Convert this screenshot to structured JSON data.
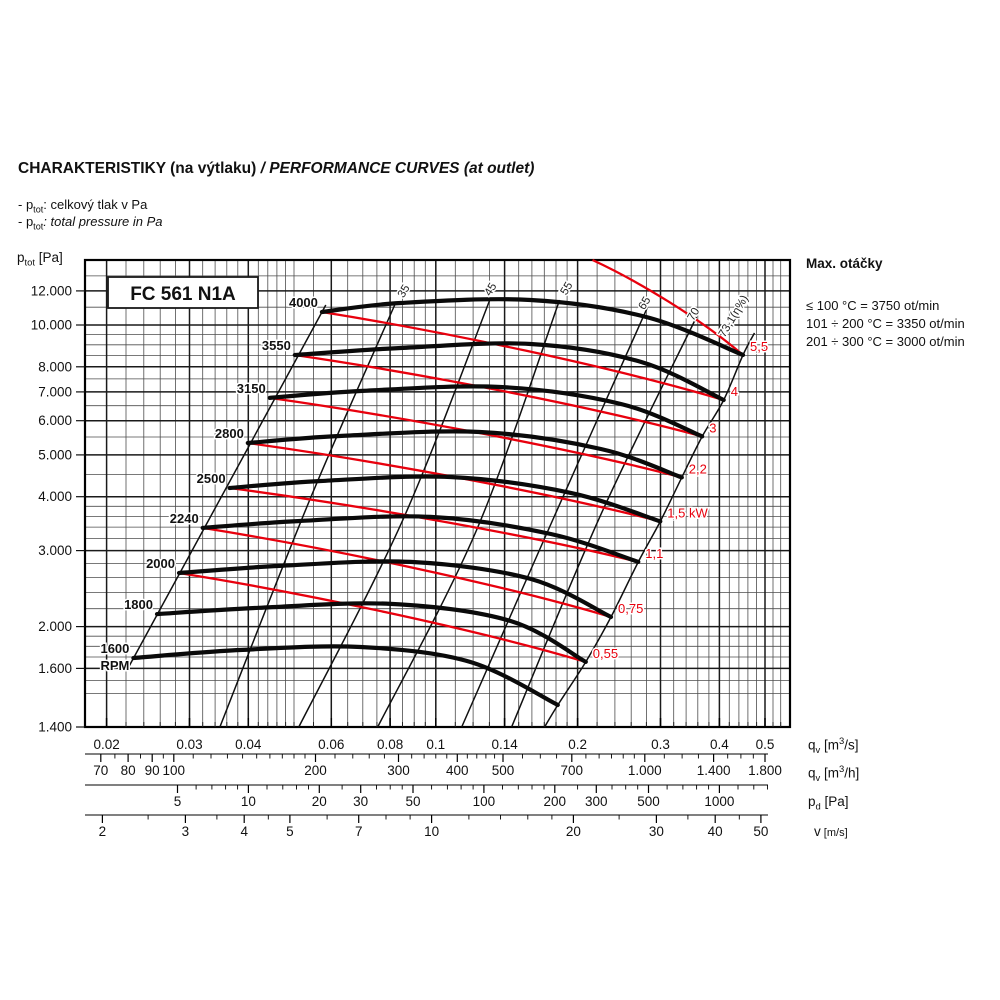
{
  "page": {
    "heading": {
      "cz": "CHARAKTERISTIKY (na výtlaku)",
      "en": " / PERFORMANCE CURVES (at outlet)"
    },
    "bullets": [
      {
        "pre": "- p",
        "sub": "tot",
        "rest": ": celkový tlak v Pa"
      },
      {
        "pre": "- p",
        "sub": "tot",
        "rest": ": total pressure in Pa"
      }
    ]
  },
  "info_panel": {
    "title": "Max. otáčky",
    "lines": [
      "≤ 100 °C = 3750 ot/min",
      "101 ÷ 200 °C = 3350 ot/min",
      "201 ÷ 300 °C = 3000 ot/min"
    ]
  },
  "units": {
    "ptot": {
      "sym": "p",
      "sub": "tot",
      "post": " [Pa]"
    },
    "flow_s": {
      "sym": "q",
      "sub": "v",
      "pre": " [m",
      "sup": "3",
      "post": "/s]"
    },
    "flow_h": {
      "sym": "q",
      "sub": "v",
      "pre": " [m",
      "sup": "3",
      "post": "/h]"
    },
    "pd": {
      "sym": "p",
      "sub": "d",
      "post": " [Pa]"
    },
    "vel": {
      "sym": "v",
      "post": " [m/s]"
    }
  },
  "chart_data": {
    "type": "line",
    "title_box": "FC 561 N1A",
    "x_axis": {
      "unit": "qv [m3/s]",
      "scale": "log",
      "min": 0.018,
      "max": 0.565,
      "major_ticks": [
        {
          "v": 0.02,
          "label": "0.02"
        },
        {
          "v": 0.03,
          "label": "0.03"
        },
        {
          "v": 0.04,
          "label": "0.04"
        },
        {
          "v": 0.06,
          "label": "0.06"
        },
        {
          "v": 0.08,
          "label": "0.08"
        },
        {
          "v": 0.1,
          "label": "0.1"
        },
        {
          "v": 0.14,
          "label": "0.14"
        },
        {
          "v": 0.2,
          "label": "0.2"
        },
        {
          "v": 0.3,
          "label": "0.3"
        },
        {
          "v": 0.4,
          "label": "0.4"
        },
        {
          "v": 0.5,
          "label": "0.5"
        }
      ],
      "minor_ticks": [
        0.022,
        0.024,
        0.026,
        0.028,
        0.032,
        0.034,
        0.036,
        0.038,
        0.042,
        0.044,
        0.046,
        0.048,
        0.05,
        0.055,
        0.065,
        0.07,
        0.075,
        0.085,
        0.09,
        0.095,
        0.11,
        0.12,
        0.13,
        0.15,
        0.16,
        0.17,
        0.18,
        0.19,
        0.22,
        0.24,
        0.26,
        0.28,
        0.32,
        0.34,
        0.36,
        0.38,
        0.42,
        0.44,
        0.46,
        0.48,
        0.52,
        0.54
      ]
    },
    "y_axis": {
      "unit": "ptot [Pa]",
      "scale": "log",
      "min": 1170,
      "max": 14150,
      "major_ticks": [
        {
          "v": 12000,
          "label": "12.000"
        },
        {
          "v": 10000,
          "label": "10.000"
        },
        {
          "v": 8000,
          "label": "8.000"
        },
        {
          "v": 7000,
          "label": "7.000"
        },
        {
          "v": 6000,
          "label": "6.000"
        },
        {
          "v": 5000,
          "label": "5.000"
        },
        {
          "v": 4000,
          "label": "4.000"
        },
        {
          "v": 3000,
          "label": "3.000"
        },
        {
          "v": 2000,
          "label": "2.000"
        },
        {
          "v": 1600,
          "label": "1.600"
        },
        {
          "v": 1400,
          "label": "1.400",
          "at_bottom_edge": true
        }
      ],
      "minor_ticks": [
        1400,
        1500,
        1700,
        1800,
        1900,
        2200,
        2400,
        2600,
        2800,
        3200,
        3400,
        3600,
        3800,
        4500,
        5500,
        6500,
        7500,
        8500,
        9000,
        9500,
        11000,
        13000
      ]
    },
    "rpm_unit_label": "RPM",
    "fan_curves": [
      {
        "rpm": 1600,
        "label": "1600",
        "points": [
          [
            0.0228,
            1691
          ],
          [
            0.0384,
            1765
          ],
          [
            0.0692,
            1793
          ],
          [
            0.1182,
            1656
          ],
          [
            0.1816,
            1316
          ]
        ]
      },
      {
        "rpm": 1800,
        "label": "1800",
        "points": [
          [
            0.0256,
            2138
          ],
          [
            0.0421,
            2210
          ],
          [
            0.0802,
            2257
          ],
          [
            0.1439,
            2061
          ],
          [
            0.2082,
            1656
          ]
        ]
      },
      {
        "rpm": 2000,
        "label": "2000",
        "points": [
          [
            0.0285,
            2662
          ],
          [
            0.0466,
            2764
          ],
          [
            0.0884,
            2824
          ],
          [
            0.1589,
            2579
          ],
          [
            0.2355,
            2105
          ]
        ]
      },
      {
        "rpm": 2240,
        "label": "2240",
        "points": [
          [
            0.032,
            3386
          ],
          [
            0.0515,
            3514
          ],
          [
            0.0974,
            3591
          ],
          [
            0.1755,
            3278
          ],
          [
            0.2691,
            2824
          ]
        ]
      },
      {
        "rpm": 2500,
        "label": "2500",
        "points": [
          [
            0.0365,
            4191
          ],
          [
            0.057,
            4350
          ],
          [
            0.1073,
            4444
          ],
          [
            0.1935,
            4081
          ],
          [
            0.2997,
            3506
          ]
        ]
      },
      {
        "rpm": 2800,
        "label": "2800",
        "points": [
          [
            0.0399,
            5328
          ],
          [
            0.0625,
            5530
          ],
          [
            0.1241,
            5650
          ],
          [
            0.2242,
            5161
          ],
          [
            0.3329,
            4434
          ]
        ]
      },
      {
        "rpm": 3150,
        "label": "3150",
        "points": [
          [
            0.0444,
            6776
          ],
          [
            0.0692,
            7032
          ],
          [
            0.137,
            7185
          ],
          [
            0.2473,
            6562
          ],
          [
            0.3679,
            5520
          ]
        ]
      },
      {
        "rpm": 3550,
        "label": "3550",
        "points": [
          [
            0.0502,
            8524
          ],
          [
            0.0842,
            8847
          ],
          [
            0.1589,
            9039
          ],
          [
            0.2731,
            8210
          ],
          [
            0.4086,
            6702
          ]
        ]
      },
      {
        "rpm": 4000,
        "label": "4000",
        "points": [
          [
            0.0573,
            10723
          ],
          [
            0.0842,
            11250
          ],
          [
            0.1589,
            11432
          ],
          [
            0.2798,
            10440
          ],
          [
            0.449,
            8524
          ]
        ]
      }
    ],
    "power_curves": [
      {
        "label": "0,55",
        "points": [
          [
            0.0285,
            2662
          ],
          [
            0.2082,
            1656
          ]
        ]
      },
      {
        "label": "0,75",
        "points": [
          [
            0.032,
            3386
          ],
          [
            0.2355,
            2105
          ]
        ]
      },
      {
        "label": "1,1",
        "points": [
          [
            0.0365,
            4191
          ],
          [
            0.2691,
            2824
          ]
        ]
      },
      {
        "label": "1,5 kW",
        "points": [
          [
            0.0399,
            5328
          ],
          [
            0.2997,
            3506
          ]
        ]
      },
      {
        "label": "2,2",
        "points": [
          [
            0.0444,
            6776
          ],
          [
            0.3329,
            4434
          ]
        ]
      },
      {
        "label": "3",
        "points": [
          [
            0.0502,
            8524
          ],
          [
            0.3679,
            5520
          ]
        ]
      },
      {
        "label": "4",
        "points": [
          [
            0.0573,
            10723
          ],
          [
            0.4086,
            6702
          ]
        ]
      },
      {
        "label": "5,5",
        "points": [
          [
            0.2152,
            14150
          ],
          [
            0.449,
            8524
          ]
        ]
      }
    ],
    "efficiency_lines": [
      {
        "label": "35",
        "points": [
          [
            0.0348,
            1170
          ],
          [
            0.054,
            3930
          ],
          [
            0.0818,
            11130
          ]
        ],
        "label_at": [
          0.0868,
          11866
        ]
      },
      {
        "label": "45",
        "points": [
          [
            0.0512,
            1170
          ],
          [
            0.0851,
            3533
          ],
          [
            0.1302,
            11432
          ]
        ],
        "label_at": [
          0.1327,
          11979
        ]
      },
      {
        "label": "55",
        "points": [
          [
            0.0753,
            1170
          ],
          [
            0.1221,
            3349
          ],
          [
            0.1832,
            11432
          ]
        ],
        "label_at": [
          0.1924,
          12036
        ]
      },
      {
        "label": "65",
        "points": [
          [
            0.1135,
            1170
          ],
          [
            0.1771,
            3533
          ],
          [
            0.2816,
            11010
          ]
        ],
        "label_at": [
          0.2816,
          11130
        ]
      },
      {
        "label": "70",
        "points": [
          [
            0.1449,
            1170
          ],
          [
            0.2239,
            3629
          ],
          [
            0.3578,
            10440
          ]
        ],
        "label_at": [
          0.3578,
          10496
        ]
      },
      {
        "label": "73,1(η%)",
        "points": [
          [
            0.1702,
            1170
          ],
          [
            0.1816,
            1316
          ],
          [
            0.2082,
            1656
          ],
          [
            0.2355,
            2105
          ],
          [
            0.2691,
            2824
          ],
          [
            0.2997,
            3506
          ],
          [
            0.3329,
            4434
          ],
          [
            0.3679,
            5520
          ],
          [
            0.4086,
            6702
          ],
          [
            0.449,
            8524
          ],
          [
            0.4749,
            9585
          ]
        ],
        "label_at": [
          0.4349,
          10383
        ]
      }
    ],
    "surge_line": [
      [
        0.0222,
        1600
      ],
      [
        0.0584,
        11130
      ]
    ],
    "secondary_axes": [
      {
        "name": "qv_m3h",
        "unit": "qv [m3/h]",
        "convert": "flow_h",
        "major_ticks": [
          {
            "v": 70,
            "label": "70"
          },
          {
            "v": 80,
            "label": "80"
          },
          {
            "v": 90,
            "label": "90"
          },
          {
            "v": 100,
            "label": "100"
          },
          {
            "v": 200,
            "label": "200"
          },
          {
            "v": 300,
            "label": "300"
          },
          {
            "v": 400,
            "label": "400"
          },
          {
            "v": 500,
            "label": "500"
          },
          {
            "v": 700,
            "label": "700"
          },
          {
            "v": 1000,
            "label": "1.000"
          },
          {
            "v": 1400,
            "label": "1.400"
          },
          {
            "v": 1800,
            "label": "1.800"
          }
        ],
        "minor_ticks": [
          75,
          85,
          95,
          110,
          120,
          130,
          140,
          150,
          160,
          170,
          180,
          190,
          220,
          240,
          260,
          280,
          320,
          340,
          360,
          380,
          420,
          440,
          460,
          480,
          550,
          600,
          650,
          750,
          800,
          850,
          900,
          950,
          1100,
          1200,
          1300,
          1500,
          1600,
          1700
        ]
      },
      {
        "name": "pd_pa",
        "unit": "pd [Pa]",
        "convert": "dyn_pressure",
        "major_ticks": [
          {
            "v": 5,
            "label": "5"
          },
          {
            "v": 10,
            "label": "10"
          },
          {
            "v": 20,
            "label": "20"
          },
          {
            "v": 30,
            "label": "30"
          },
          {
            "v": 50,
            "label": "50"
          },
          {
            "v": 100,
            "label": "100"
          },
          {
            "v": 200,
            "label": "200"
          },
          {
            "v": 300,
            "label": "300"
          },
          {
            "v": 500,
            "label": "500"
          },
          {
            "v": 1000,
            "label": "1000"
          }
        ],
        "minor_ticks": [
          6,
          7,
          8,
          9,
          12,
          14,
          16,
          18,
          25,
          35,
          40,
          45,
          60,
          70,
          80,
          90,
          120,
          140,
          160,
          180,
          250,
          350,
          400,
          450,
          600,
          700,
          800,
          900,
          1200,
          1400,
          1600
        ]
      },
      {
        "name": "v_ms",
        "unit": "v [m/s]",
        "convert": "velocity",
        "major_ticks": [
          {
            "v": 2,
            "label": "2"
          },
          {
            "v": 3,
            "label": "3"
          },
          {
            "v": 4,
            "label": "4"
          },
          {
            "v": 5,
            "label": "5"
          },
          {
            "v": 7,
            "label": "7"
          },
          {
            "v": 10,
            "label": "10"
          },
          {
            "v": 20,
            "label": "20"
          },
          {
            "v": 30,
            "label": "30"
          },
          {
            "v": 40,
            "label": "40"
          },
          {
            "v": 50,
            "label": "50"
          }
        ],
        "minor_ticks": [
          2.5,
          3.5,
          4.5,
          6,
          8,
          9,
          12,
          14,
          16,
          18,
          25,
          35,
          45
        ]
      }
    ],
    "constants": {
      "outlet_area_m2": 0.0098,
      "air_density": 1.2
    },
    "colors": {
      "curve": "#0a0a0a",
      "power": "#e8000d",
      "grid_minor": "#4d4d4d",
      "grid_major": "#1a1a1a",
      "border": "#000000"
    }
  }
}
